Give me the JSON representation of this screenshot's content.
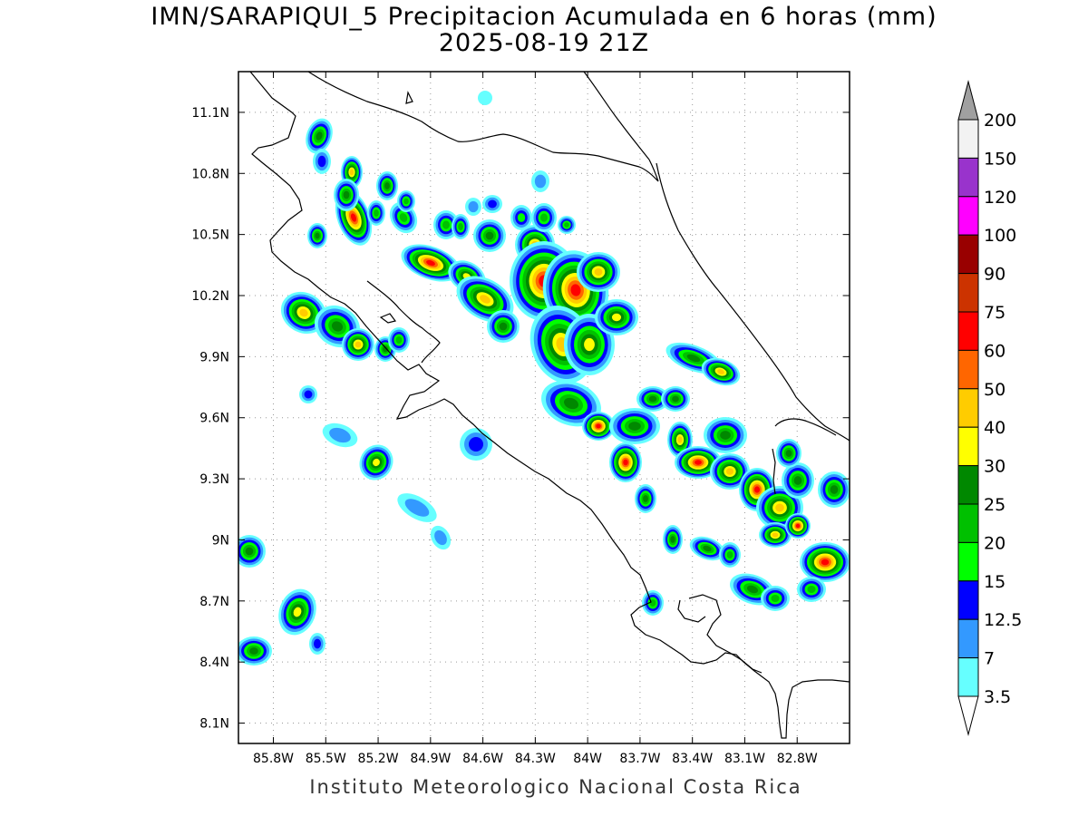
{
  "title": {
    "line1": "IMN/SARAPIQUI_5 Precipitacion Acumulada en 6 horas (mm)",
    "line2": "2025-08-19 21Z"
  },
  "footer": "Instituto Meteorologico Nacional Costa Rica",
  "map": {
    "lon_range": [
      -86.0,
      -82.5
    ],
    "lat_range": [
      8.0,
      11.3
    ],
    "lon_ticks": [
      "85.8W",
      "85.5W",
      "85.2W",
      "84.9W",
      "84.6W",
      "84.3W",
      "84W",
      "83.7W",
      "83.4W",
      "83.1W",
      "82.8W"
    ],
    "lat_ticks": [
      "11.1N",
      "10.8N",
      "10.5N",
      "10.2N",
      "9.9N",
      "9.6N",
      "9.3N",
      "9N",
      "8.7N",
      "8.4N",
      "8.1N"
    ],
    "grid": "dotted"
  },
  "legend": {
    "levels": [
      {
        "label": "200",
        "color": "#a0a0a0"
      },
      {
        "label": "150",
        "color": "#f2f2f2"
      },
      {
        "label": "120",
        "color": "#9933cc"
      },
      {
        "label": "100",
        "color": "#ff00ff"
      },
      {
        "label": "90",
        "color": "#990000"
      },
      {
        "label": "75",
        "color": "#cc3300"
      },
      {
        "label": "60",
        "color": "#ff0000"
      },
      {
        "label": "50",
        "color": "#ff6600"
      },
      {
        "label": "40",
        "color": "#ffcc00"
      },
      {
        "label": "30",
        "color": "#ffff00"
      },
      {
        "label": "25",
        "color": "#008800"
      },
      {
        "label": "20",
        "color": "#00c000"
      },
      {
        "label": "15",
        "color": "#00ff00"
      },
      {
        "label": "12.5",
        "color": "#0000ff"
      },
      {
        "label": "7",
        "color": "#3399ff"
      },
      {
        "label": "3.5",
        "color": "#66ffff"
      }
    ],
    "bottom_color": "#ffffff"
  }
}
